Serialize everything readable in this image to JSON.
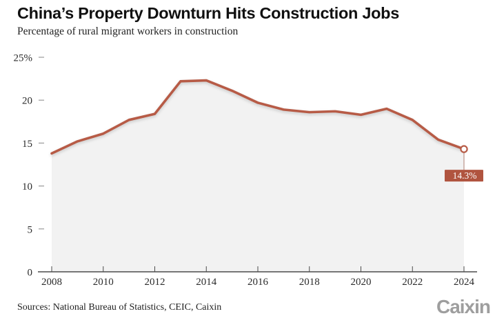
{
  "header": {
    "title": "China’s Property Downturn Hits Construction Jobs",
    "subtitle": "Percentage of rural migrant workers in construction"
  },
  "footer": {
    "sources": "Sources: National Bureau of Statistics, CEIC, Caixin",
    "logo": "Caixin"
  },
  "chart_data": {
    "type": "area",
    "title": "China’s Property Downturn Hits Construction Jobs",
    "subtitle": "Percentage of rural migrant workers in construction",
    "x": [
      2008,
      2009,
      2010,
      2011,
      2012,
      2013,
      2014,
      2015,
      2016,
      2017,
      2018,
      2019,
      2020,
      2021,
      2022,
      2023,
      2024
    ],
    "values": [
      13.8,
      15.2,
      16.1,
      17.7,
      18.4,
      22.2,
      22.3,
      21.1,
      19.7,
      18.9,
      18.6,
      18.7,
      18.3,
      19.0,
      17.7,
      15.4,
      14.3
    ],
    "ylim": [
      0,
      25
    ],
    "grid": false,
    "y_axis": {
      "ticks": [
        {
          "label": "25%",
          "value": 25
        },
        {
          "label": "20",
          "value": 20
        },
        {
          "label": "15",
          "value": 15
        },
        {
          "label": "10",
          "value": 10
        },
        {
          "label": "5",
          "value": 5
        },
        {
          "label": "0",
          "value": 0
        }
      ]
    },
    "x_axis": {
      "ticks": [
        {
          "label": "2008",
          "value": 2008
        },
        {
          "label": "2010",
          "value": 2010
        },
        {
          "label": "2012",
          "value": 2012
        },
        {
          "label": "2014",
          "value": 2014
        },
        {
          "label": "2016",
          "value": 2016
        },
        {
          "label": "2018",
          "value": 2018
        },
        {
          "label": "2020",
          "value": 2020
        },
        {
          "label": "2022",
          "value": 2022
        },
        {
          "label": "2024",
          "value": 2024
        }
      ]
    },
    "annotation": {
      "label": "14.3%",
      "year": 2024,
      "value": 14.3
    },
    "colors": {
      "line": "#b75b46",
      "area": "#f2f2f2",
      "axis": "#4a4a4a",
      "y_dash": "#999999",
      "annotation_box": "#b0543f",
      "annotation_text": "#ffffff",
      "marker_fill": "#ffffff"
    }
  }
}
